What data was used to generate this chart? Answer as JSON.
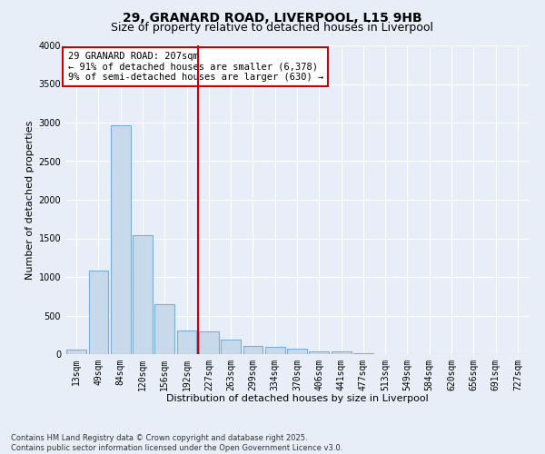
{
  "title_line1": "29, GRANARD ROAD, LIVERPOOL, L15 9HB",
  "title_line2": "Size of property relative to detached houses in Liverpool",
  "xlabel": "Distribution of detached houses by size in Liverpool",
  "ylabel": "Number of detached properties",
  "categories": [
    "13sqm",
    "49sqm",
    "84sqm",
    "120sqm",
    "156sqm",
    "192sqm",
    "227sqm",
    "263sqm",
    "299sqm",
    "334sqm",
    "370sqm",
    "406sqm",
    "441sqm",
    "477sqm",
    "513sqm",
    "549sqm",
    "584sqm",
    "620sqm",
    "656sqm",
    "691sqm",
    "727sqm"
  ],
  "values": [
    55,
    1080,
    2960,
    1540,
    650,
    310,
    300,
    185,
    110,
    100,
    65,
    30,
    30,
    15,
    5,
    5,
    0,
    0,
    0,
    0,
    0
  ],
  "bar_color": "#c9d9ec",
  "bar_edge_color": "#7aaed6",
  "bg_color": "#e8eef7",
  "grid_color": "#ffffff",
  "vline_color": "#cc0000",
  "annotation_text": "29 GRANARD ROAD: 207sqm\n← 91% of detached houses are smaller (6,378)\n9% of semi-detached houses are larger (630) →",
  "annotation_box_color": "#ffffff",
  "annotation_box_edge_color": "#cc0000",
  "ylim": [
    0,
    4000
  ],
  "yticks": [
    0,
    500,
    1000,
    1500,
    2000,
    2500,
    3000,
    3500,
    4000
  ],
  "footnote": "Contains HM Land Registry data © Crown copyright and database right 2025.\nContains public sector information licensed under the Open Government Licence v3.0.",
  "title_fontsize": 10,
  "subtitle_fontsize": 9,
  "axis_label_fontsize": 8,
  "tick_fontsize": 7,
  "annotation_fontsize": 7.5
}
